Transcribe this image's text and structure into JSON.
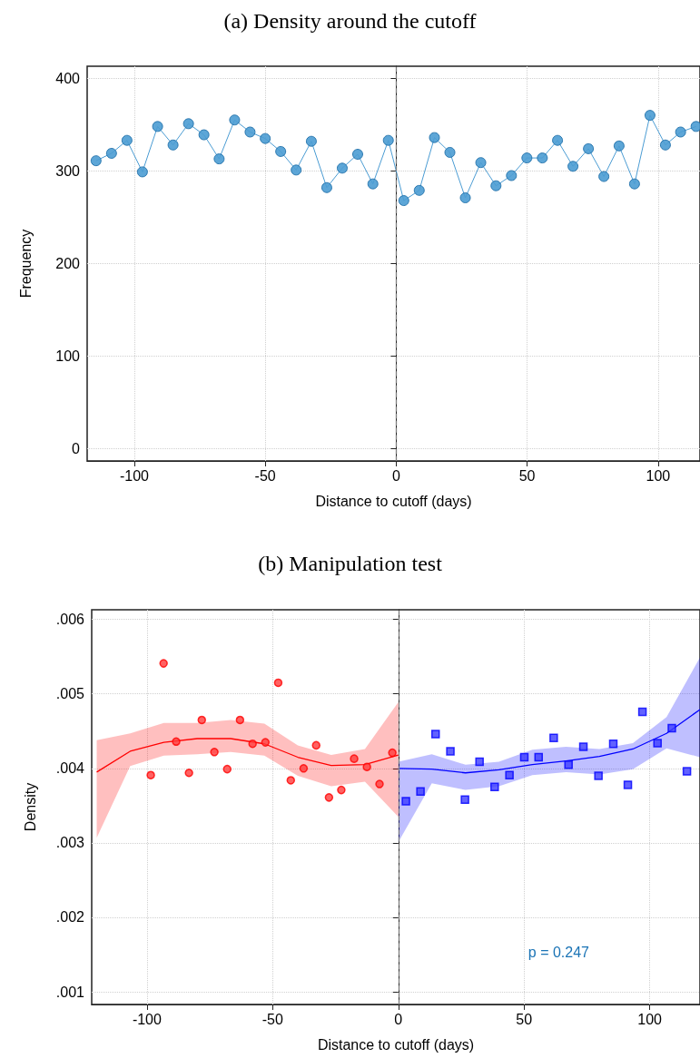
{
  "chart_data": [
    {
      "type": "line",
      "title": "(a) Density around the cutoff",
      "xlabel": "Distance to cutoff (days)",
      "ylabel": "Frequency",
      "marker": "circle",
      "line_style": "solid",
      "grid": true,
      "xlim": [
        -118,
        116
      ],
      "xticks": [
        -100,
        -50,
        0,
        50,
        100
      ],
      "ylim": [
        -13,
        413
      ],
      "yticks": [
        0,
        100,
        200,
        300,
        400
      ],
      "ref_lines": [
        {
          "axis": "x",
          "value": 0,
          "color": "#7f7f7f",
          "line_style": "dashed"
        }
      ],
      "series": [
        {
          "color": "#4b9cd3",
          "x": [
            -114.6,
            -108.7,
            -102.8,
            -96.9,
            -91.1,
            -85.2,
            -79.3,
            -73.4,
            -67.6,
            -61.7,
            -55.8,
            -50.0,
            -44.1,
            -38.2,
            -32.4,
            -26.5,
            -20.6,
            -14.7,
            -8.9,
            -3.0,
            2.9,
            8.8,
            14.6,
            20.5,
            26.4,
            32.3,
            38.1,
            44.0,
            49.9,
            55.8,
            61.6,
            67.5,
            73.4,
            79.3,
            85.1,
            91.0,
            96.9,
            102.8,
            108.6,
            114.5
          ],
          "values": [
            311,
            319,
            333,
            299,
            348,
            328,
            351,
            339,
            313,
            355,
            342,
            335,
            321,
            301,
            332,
            282,
            303,
            318,
            286,
            333,
            268,
            279,
            336,
            320,
            271,
            309,
            284,
            295,
            314,
            314,
            333,
            305,
            324,
            294,
            327,
            286,
            360,
            328,
            342,
            348
          ]
        }
      ]
    },
    {
      "type": "scatter",
      "title": "(b) Manipulation test",
      "xlabel": "Distance to cutoff (days)",
      "ylabel": "Density",
      "grid": true,
      "annotations": [
        "p = 0.247"
      ],
      "xlim": [
        -122,
        120
      ],
      "xticks": [
        -100,
        -50,
        0,
        50,
        100
      ],
      "ylim": [
        0.00083,
        0.00613
      ],
      "yticks": [
        {
          "value": 0.001,
          "label": ".001"
        },
        {
          "value": 0.002,
          "label": ".002"
        },
        {
          "value": 0.003,
          "label": ".003"
        },
        {
          "value": 0.004,
          "label": ".004"
        },
        {
          "value": 0.005,
          "label": ".005"
        },
        {
          "value": 0.006,
          "label": ".006"
        }
      ],
      "ref_lines": [
        {
          "axis": "x",
          "value": 0,
          "color": "#7f7f7f",
          "line_style": "dashed"
        }
      ],
      "series": [
        {
          "type": "line",
          "color": "#ff0000",
          "line_style": "solid",
          "marker": "none",
          "x": [
            -120,
            -106.7,
            -93.3,
            -80,
            -66.7,
            -53.3,
            -40,
            -26.7,
            -13.3,
            0
          ],
          "values": [
            0.00395,
            0.00423,
            0.00435,
            0.0044,
            0.0044,
            0.00433,
            0.00415,
            0.00404,
            0.00405,
            0.00418
          ],
          "lower": [
            0.00307,
            0.00403,
            0.00417,
            0.00419,
            0.00422,
            0.00417,
            0.0039,
            0.00376,
            0.00382,
            0.00335
          ],
          "upper": [
            0.00438,
            0.00447,
            0.00461,
            0.00461,
            0.00465,
            0.0046,
            0.00431,
            0.00418,
            0.00426,
            0.00489
          ]
        },
        {
          "type": "line",
          "color": "#0000ff",
          "line_style": "solid",
          "marker": "none",
          "x": [
            0,
            13.3,
            26.7,
            40,
            53.3,
            66.7,
            80,
            93.3,
            106.7,
            120
          ],
          "values": [
            0.004,
            0.00399,
            0.00394,
            0.00398,
            0.00405,
            0.0041,
            0.00416,
            0.00426,
            0.00447,
            0.00479
          ],
          "lower": [
            0.00301,
            0.0038,
            0.00371,
            0.00376,
            0.00391,
            0.00395,
            0.00392,
            0.00399,
            0.00427,
            0.00415
          ],
          "upper": [
            0.00409,
            0.00419,
            0.00405,
            0.00409,
            0.00425,
            0.00429,
            0.00426,
            0.00434,
            0.00469,
            0.00549
          ]
        },
        {
          "color": "#ff3b3b",
          "marker": "circle",
          "x": [
            -98.5,
            -93.4,
            -88.4,
            -83.3,
            -78.2,
            -73.2,
            -68.1,
            -63.0,
            -58.0,
            -52.9,
            -47.8,
            -42.8,
            -37.7,
            -32.7,
            -27.6,
            -22.7,
            -17.6,
            -12.5,
            -7.5,
            -2.4
          ],
          "values": [
            0.00391,
            0.00541,
            0.00436,
            0.00394,
            0.00465,
            0.00422,
            0.00399,
            0.00465,
            0.00433,
            0.00435,
            0.00515,
            0.00384,
            0.004,
            0.00431,
            0.00361,
            0.00371,
            0.00413,
            0.00402,
            0.00379,
            0.00421
          ]
        },
        {
          "color": "#3b3bff",
          "marker": "square",
          "x": [
            3.0,
            8.8,
            14.8,
            20.7,
            26.5,
            32.3,
            38.3,
            44.2,
            50.1,
            55.8,
            61.8,
            67.7,
            73.6,
            79.6,
            85.5,
            91.3,
            97.1,
            103.1,
            108.8,
            114.8
          ],
          "values": [
            0.00356,
            0.00369,
            0.00446,
            0.00423,
            0.00358,
            0.00409,
            0.00375,
            0.00391,
            0.00415,
            0.00415,
            0.00441,
            0.00405,
            0.00429,
            0.0039,
            0.00433,
            0.00378,
            0.00476,
            0.00434,
            0.00454,
            0.00396
          ]
        }
      ]
    }
  ]
}
